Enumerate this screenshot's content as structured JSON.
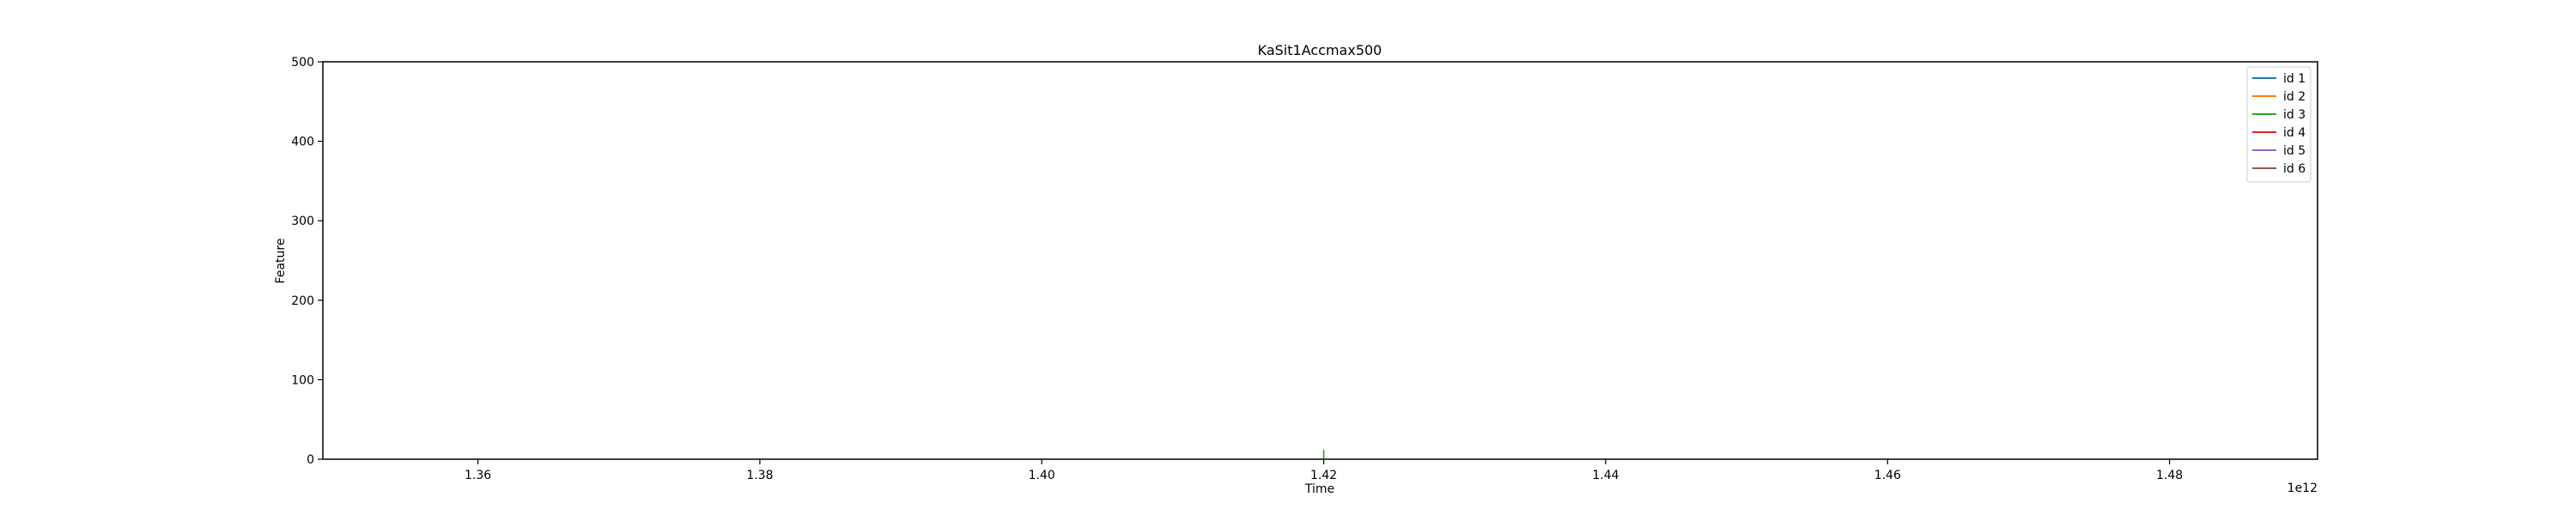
{
  "chart_data": {
    "type": "line",
    "title": "KaSit1Accmax500",
    "xlabel": "Time",
    "ylabel": "Feature",
    "x_offset_label": "1e12",
    "xlim": [
      1349000000000.0,
      1490500000000.0
    ],
    "ylim": [
      0,
      500
    ],
    "x_ticks": [
      1360000000000.0,
      1380000000000.0,
      1400000000000.0,
      1420000000000.0,
      1440000000000.0,
      1460000000000.0,
      1480000000000.0
    ],
    "x_tick_labels": [
      "1.36",
      "1.38",
      "1.40",
      "1.42",
      "1.44",
      "1.46",
      "1.48"
    ],
    "y_ticks": [
      0,
      100,
      200,
      300,
      400,
      500
    ],
    "y_tick_labels": [
      "0",
      "100",
      "200",
      "300",
      "400",
      "500"
    ],
    "grid": false,
    "legend_position": "top-right",
    "series": [
      {
        "name": "id 1",
        "color": "#1f77b4",
        "x": [],
        "y": []
      },
      {
        "name": "id 2",
        "color": "#ff7f0e",
        "x": [],
        "y": []
      },
      {
        "name": "id 3",
        "color": "#2ca02c",
        "x": [
          1420000000000.0,
          1420000000000.0
        ],
        "y": [
          0,
          12
        ]
      },
      {
        "name": "id 4",
        "color": "#d62728",
        "x": [],
        "y": []
      },
      {
        "name": "id 5",
        "color": "#9467bd",
        "x": [],
        "y": []
      },
      {
        "name": "id 6",
        "color": "#8c564b",
        "x": [],
        "y": []
      }
    ]
  }
}
